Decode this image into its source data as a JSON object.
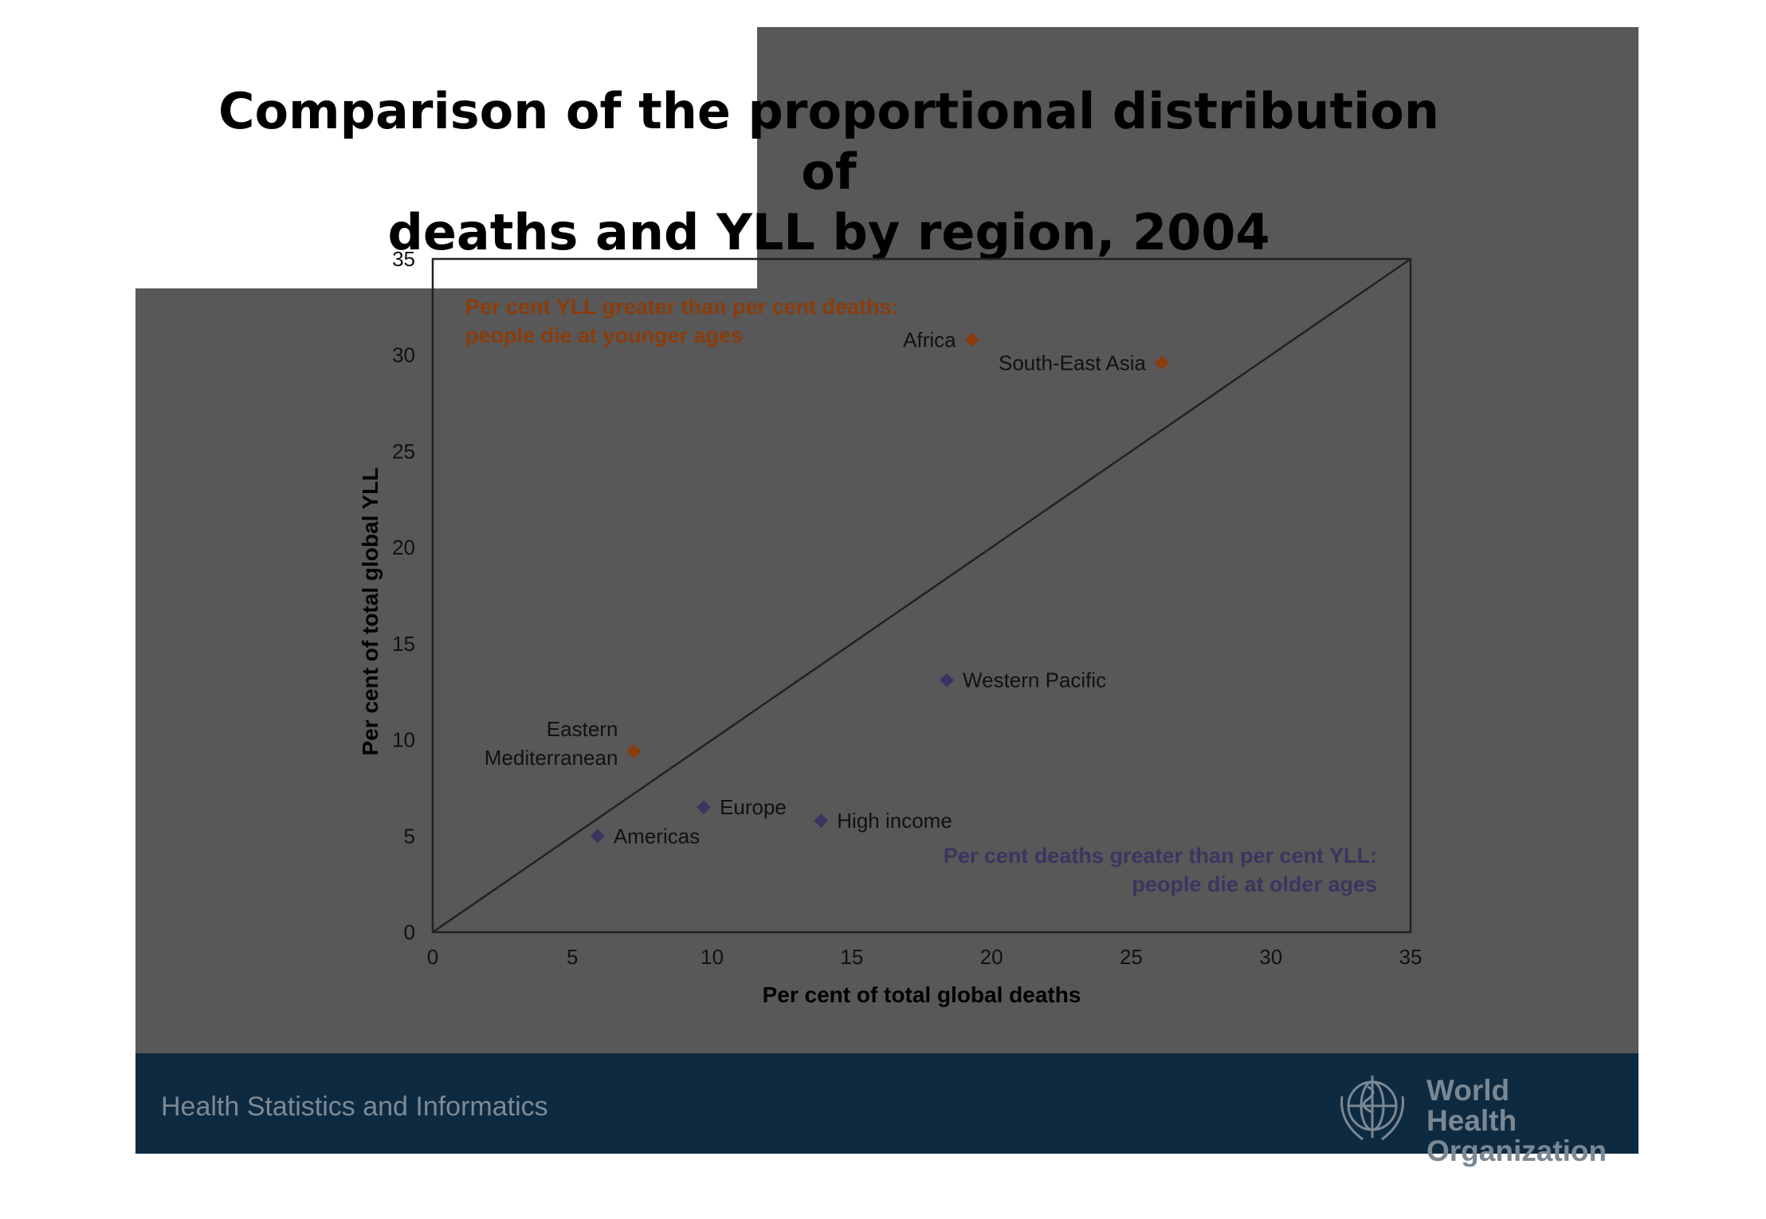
{
  "title_line1": "Comparison of the proportional distribution of",
  "title_line2": "deaths and YLL by region, 2004",
  "footer": {
    "left_text": "Health Statistics and Informatics",
    "logo_line1": "World Health",
    "logo_line2": "Organization",
    "logo_icon": "who-emblem-icon"
  },
  "colors": {
    "older_ages": "#3a3560",
    "younger_ages": "#8b3c0c",
    "footer_bg": "#0e2a40",
    "slide_bg": "#585858"
  },
  "chart_data": {
    "type": "scatter",
    "xlabel": "Per cent of total global deaths",
    "ylabel": "Per cent of total global YLL",
    "xlim": [
      0,
      35
    ],
    "ylim": [
      0,
      35
    ],
    "xticks": [
      0,
      5,
      10,
      15,
      20,
      25,
      30,
      35
    ],
    "yticks": [
      0,
      5,
      10,
      15,
      20,
      25,
      30,
      35
    ],
    "grid": false,
    "reference_line": {
      "from": [
        0,
        0
      ],
      "to": [
        35,
        35
      ]
    },
    "annotations": [
      {
        "id": "younger",
        "lines": [
          "Per cent YLL greater than per cent deaths:",
          "people die at younger ages"
        ],
        "color": "#8b3c0c"
      },
      {
        "id": "older",
        "lines": [
          "Per cent deaths greater than per cent YLL:",
          "people die at older ages"
        ],
        "color": "#3a3560"
      }
    ],
    "points": [
      {
        "label": "Africa",
        "x": 19.3,
        "y": 30.8,
        "group": "younger"
      },
      {
        "label": "South-East Asia",
        "x": 26.1,
        "y": 29.6,
        "group": "younger"
      },
      {
        "label": "Eastern Mediterranean",
        "x": 7.2,
        "y": 9.4,
        "group": "younger"
      },
      {
        "label": "Western Pacific",
        "x": 18.4,
        "y": 13.1,
        "group": "older"
      },
      {
        "label": "Europe",
        "x": 9.7,
        "y": 6.5,
        "group": "older"
      },
      {
        "label": "High income",
        "x": 13.9,
        "y": 5.8,
        "group": "older"
      },
      {
        "label": "Americas",
        "x": 5.9,
        "y": 5.0,
        "group": "older"
      }
    ]
  }
}
